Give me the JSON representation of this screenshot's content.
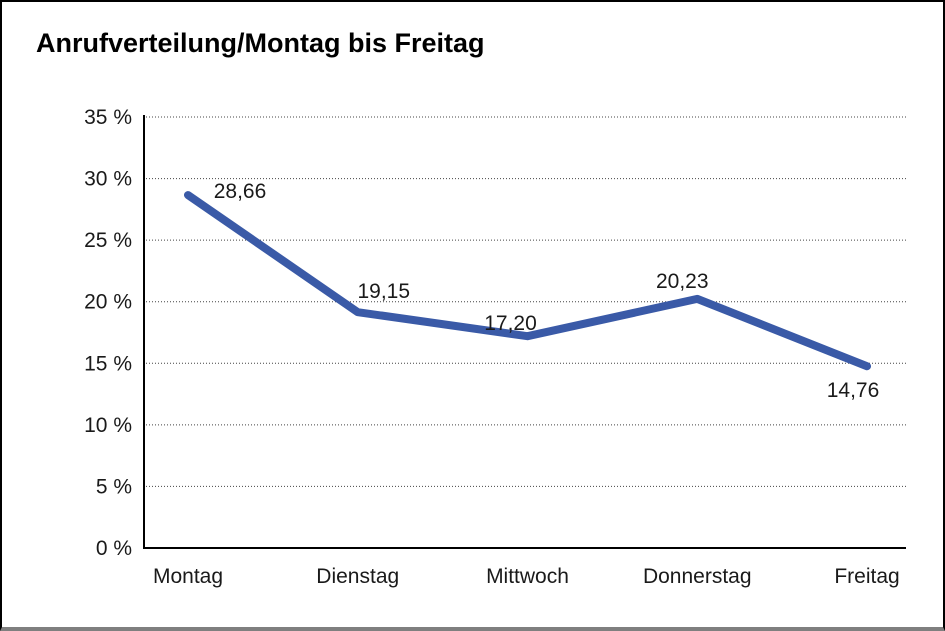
{
  "chart_data": {
    "type": "line",
    "title": "Anrufverteilung/Montag bis Freitag",
    "categories": [
      "Montag",
      "Dienstag",
      "Mittwoch",
      "Donnerstag",
      "Freitag"
    ],
    "values": [
      28.66,
      19.15,
      17.2,
      20.23,
      14.76
    ],
    "value_labels": [
      "28,66",
      "19,15",
      "17,20",
      "20,23",
      "14,76"
    ],
    "xlabel": "",
    "ylabel": "",
    "ylim": [
      0,
      35
    ],
    "yticks": [
      {
        "value": 0,
        "label": "0 %"
      },
      {
        "value": 5,
        "label": "5 %"
      },
      {
        "value": 10,
        "label": "10 %"
      },
      {
        "value": 15,
        "label": "15 %"
      },
      {
        "value": 20,
        "label": "20 %"
      },
      {
        "value": 25,
        "label": "25 %"
      },
      {
        "value": 30,
        "label": "30 %"
      },
      {
        "value": 35,
        "label": "35 %"
      }
    ],
    "grid": "dotted-horizontal",
    "legend": "none",
    "line_color": "#3A5AA7"
  }
}
